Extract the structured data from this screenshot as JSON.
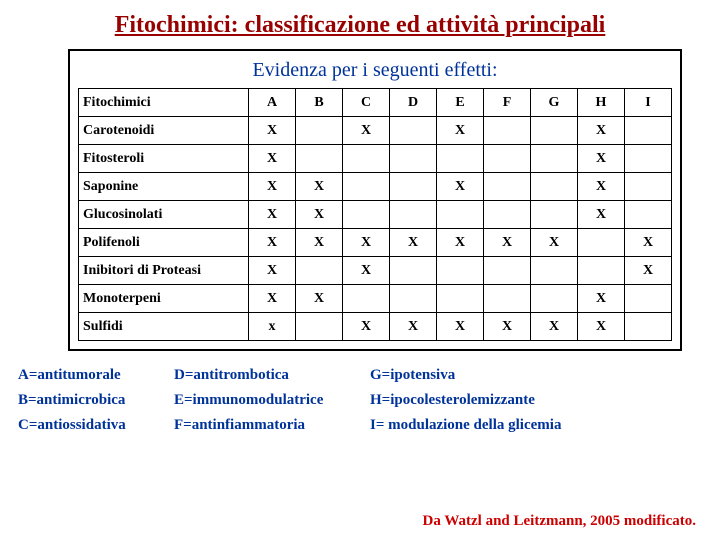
{
  "colors": {
    "title": "#990000",
    "subtitle": "#003399",
    "legend_text": "#003399",
    "credit_text": "#cc0000",
    "table_text": "#000000",
    "background": "#ffffff",
    "border": "#000000"
  },
  "title": "Fitochimici: classificazione ed attività principali",
  "subtitle": "Evidenza per i seguenti effetti:",
  "table": {
    "header_first": "Fitochimici",
    "columns": [
      "A",
      "B",
      "C",
      "D",
      "E",
      "F",
      "G",
      "H",
      "I"
    ],
    "rows": [
      {
        "name": "Carotenoidi",
        "marks": [
          "X",
          "",
          "X",
          "",
          "X",
          "",
          "",
          "X",
          ""
        ]
      },
      {
        "name": "Fitosteroli",
        "marks": [
          "X",
          "",
          "",
          "",
          "",
          "",
          "",
          "X",
          ""
        ]
      },
      {
        "name": "Saponine",
        "marks": [
          "X",
          "X",
          "",
          "",
          "X",
          "",
          "",
          "X",
          ""
        ]
      },
      {
        "name": "Glucosinolati",
        "marks": [
          "X",
          "X",
          "",
          "",
          "",
          "",
          "",
          "X",
          ""
        ]
      },
      {
        "name": "Polifenoli",
        "marks": [
          "X",
          "X",
          "X",
          "X",
          "X",
          "X",
          "X",
          "",
          "X"
        ]
      },
      {
        "name": "Inibitori di Proteasi",
        "marks": [
          "X",
          "",
          "X",
          "",
          "",
          "",
          "",
          "",
          "X"
        ]
      },
      {
        "name": "Monoterpeni",
        "marks": [
          "X",
          "X",
          "",
          "",
          "",
          "",
          "",
          "X",
          ""
        ]
      },
      {
        "name": "Sulfidi",
        "marks": [
          "x",
          "",
          "X",
          "X",
          "X",
          "X",
          "X",
          "X",
          ""
        ]
      }
    ]
  },
  "legend": {
    "col1": [
      "A=antitumorale",
      "B=antimicrobica",
      "C=antiossidativa"
    ],
    "col2": [
      "D=antitrombotica",
      "E=immunomodulatrice",
      "F=antinfiammatoria"
    ],
    "col3": [
      "G=ipotensiva",
      "H=ipocolesterolemizzante",
      "I= modulazione della glicemia"
    ]
  },
  "credit": "Da Watzl and Leitzmann, 2005 modificato."
}
